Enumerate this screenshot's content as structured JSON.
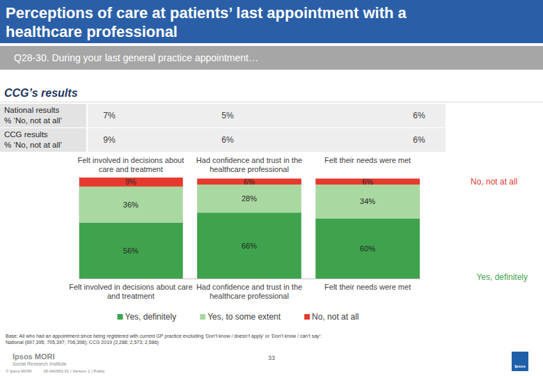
{
  "header": {
    "title_lines": [
      "Perceptions of care at patients’ last appointment with a",
      "healthcare professional"
    ],
    "question": "Q28-30. During your last general practice appointment…"
  },
  "section_title": "CCG’s results",
  "table": {
    "rows": [
      {
        "label_lines": [
          "National results",
          "% ‘No, not at all’"
        ],
        "cells": [
          "7%",
          "5%",
          "6%"
        ]
      },
      {
        "label_lines": [
          "CCG results",
          "% ‘No, not at all’"
        ],
        "cells": [
          "9%",
          "6%",
          "6%"
        ]
      }
    ]
  },
  "chart_data": {
    "type": "bar",
    "stacked": true,
    "data_labels": true,
    "tick_labels": "x",
    "categories": [
      "Felt involved in decisions about care and treatment",
      "Had confidence and trust in the healthcare professional",
      "Felt their needs were met"
    ],
    "ylim": [
      0,
      101
    ],
    "series": [
      {
        "name": "Yes, definitely",
        "color": "#3fa34d",
        "values": [
          56,
          66,
          60
        ],
        "value_labels": [
          "56%",
          "66%",
          "60%"
        ]
      },
      {
        "name": "Yes, to some extent",
        "color": "#a9d8a1",
        "values": [
          36,
          28,
          34
        ],
        "value_labels": [
          "36%",
          "28%",
          "34%"
        ]
      },
      {
        "name": "No, not at all",
        "color": "#e63a2e",
        "values": [
          9,
          6,
          6
        ],
        "value_labels": [
          "9%",
          "6%",
          "6%"
        ]
      }
    ]
  },
  "footer": {
    "base_lines": [
      "Base: All who had an appointment since being registered with current GP practice excluding ‘Don’t know / doesn’t apply’ or ‘Don’t know / can’t say’:",
      "National (697,395; 705,397; 706,398); CCG 2019 (2,288; 2,573; 2,586)"
    ],
    "logo_lines": [
      "Ipsos MORI",
      "Social Research Institute"
    ],
    "page_number": "33",
    "copyright": "© Ipsos MORI",
    "job_info": "18-042653-01 | Version 1 | Public",
    "badge": "Ipsos"
  }
}
